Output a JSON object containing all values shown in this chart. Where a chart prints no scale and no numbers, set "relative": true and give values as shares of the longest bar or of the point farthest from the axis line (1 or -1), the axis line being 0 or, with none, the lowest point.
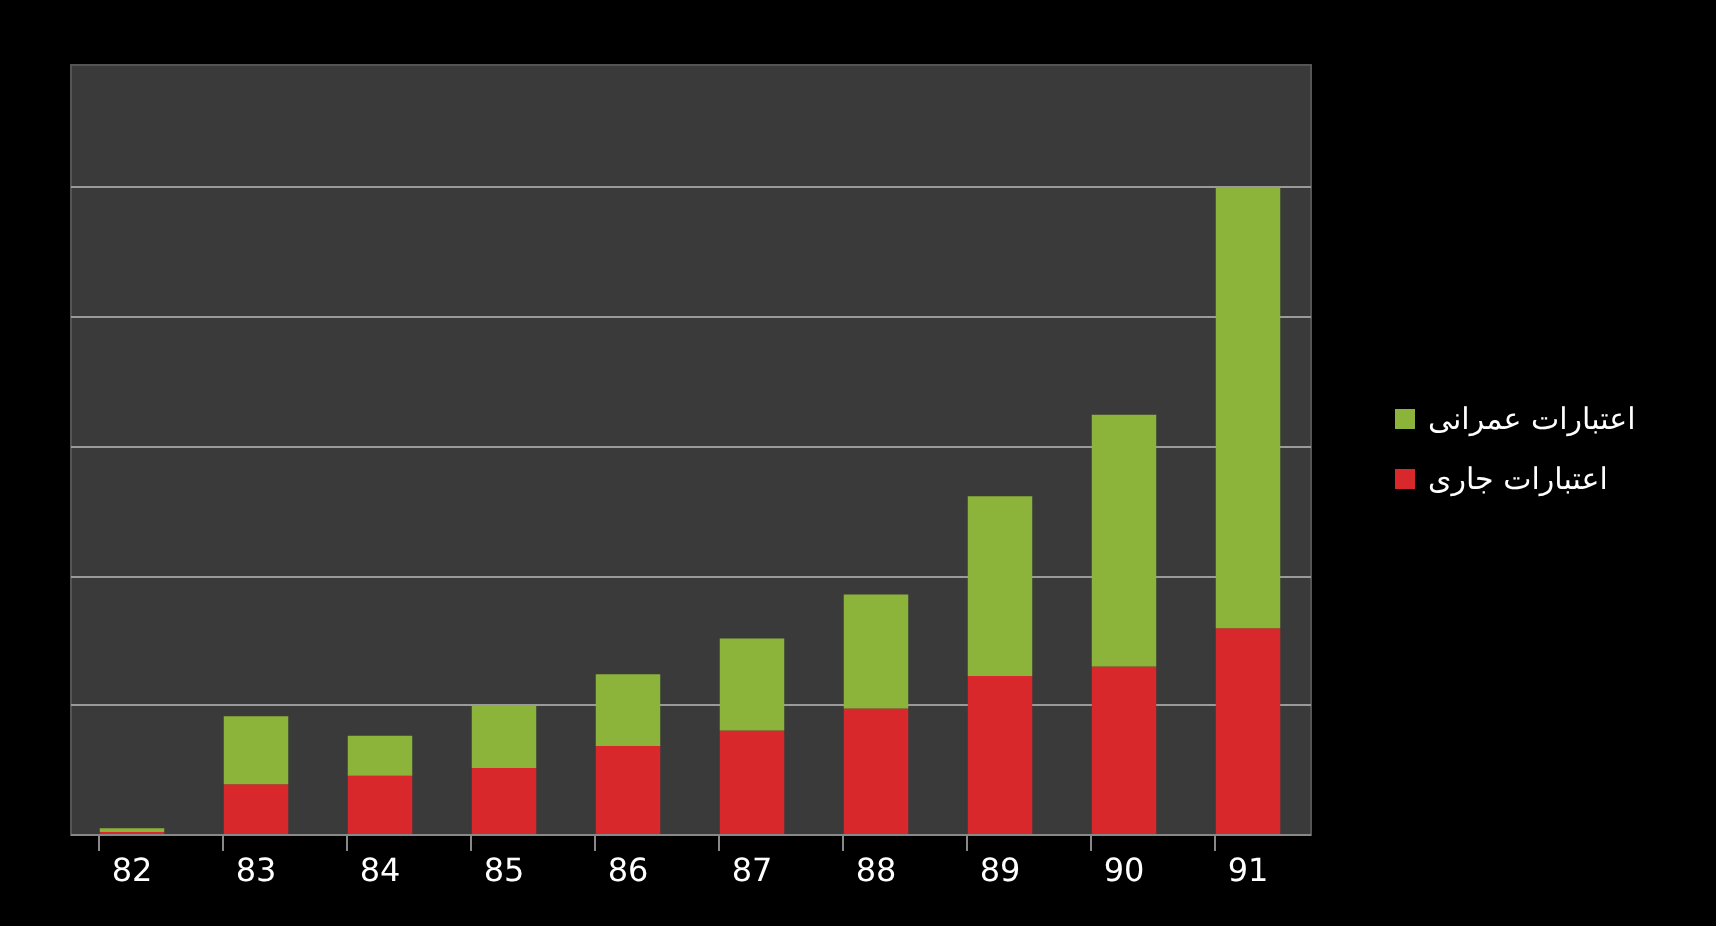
{
  "chart_data": {
    "type": "bar",
    "stacked": true,
    "relative": true,
    "grid": "y",
    "legend": "right",
    "categories": [
      "82",
      "83",
      "84",
      "85",
      "86",
      "87",
      "88",
      "89",
      "90",
      "91"
    ],
    "series": [
      {
        "name": "اعتبارات جاری",
        "color": "#d9282b",
        "values": [
          0.003,
          0.077,
          0.09,
          0.102,
          0.136,
          0.16,
          0.194,
          0.244,
          0.259,
          0.318
        ]
      },
      {
        "name": "اعتبارات عمرانی",
        "color": "#8cb33a",
        "values": [
          0.006,
          0.105,
          0.062,
          0.096,
          0.111,
          0.142,
          0.176,
          0.278,
          0.389,
          0.682
        ]
      }
    ]
  }
}
